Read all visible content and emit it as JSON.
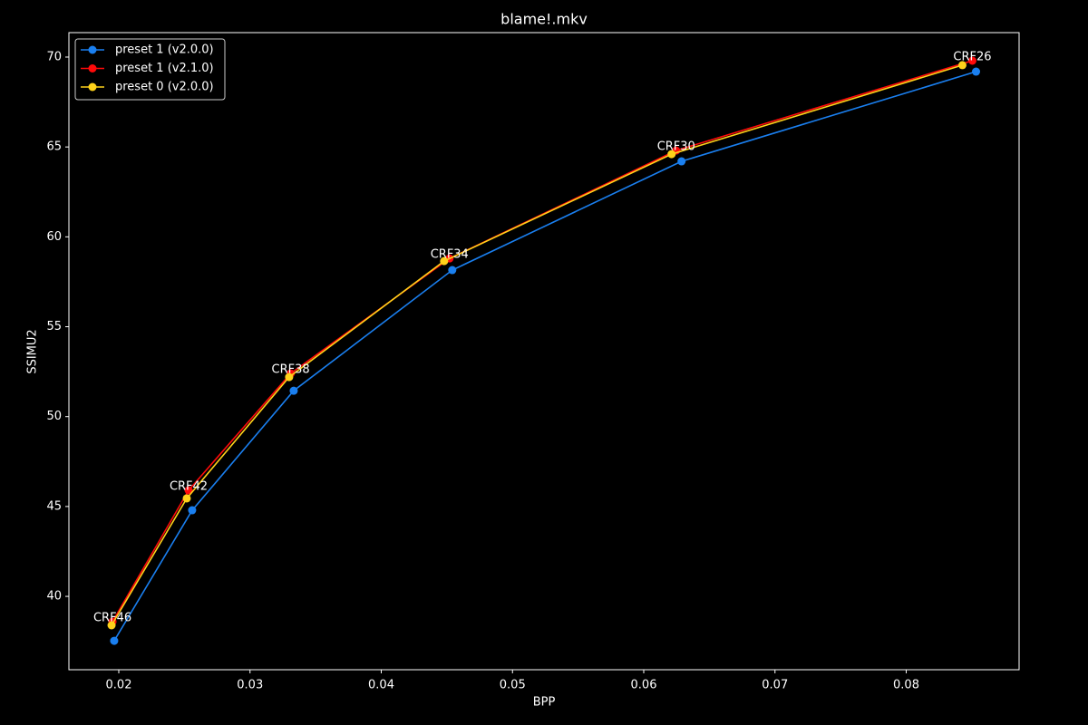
{
  "chart_data": {
    "type": "line",
    "title": "blame!.mkv",
    "x_label": "BPP",
    "y_label": "SSIMU2",
    "xlim": [
      0.0162,
      0.0886
    ],
    "ylim": [
      35.92,
      71.36
    ],
    "xticks": [
      0.02,
      0.03,
      0.04,
      0.05,
      0.06,
      0.07,
      0.08
    ],
    "yticks": [
      40,
      45,
      50,
      55,
      60,
      65,
      70
    ],
    "legend": "upper left",
    "annotations": [
      "CRF46",
      "CRF42",
      "CRF38",
      "CRF34",
      "CRF30",
      "CRF26"
    ],
    "series": [
      {
        "name": "preset 1 (v2.0.0)",
        "color": "#1a7fef",
        "x": [
          0.01965,
          0.02559,
          0.03333,
          0.04541,
          0.06288,
          0.08532
        ],
        "values": [
          37.53,
          44.79,
          51.44,
          58.15,
          64.2,
          69.19
        ]
      },
      {
        "name": "preset 1 (v2.1.0)",
        "color": "#ff0a0a",
        "x": [
          0.01952,
          0.02532,
          0.0331,
          0.0452,
          0.06247,
          0.08504
        ],
        "values": [
          38.59,
          45.9,
          52.4,
          58.8,
          64.8,
          69.8
        ]
      },
      {
        "name": "preset 0 (v2.0.0)",
        "color": "#ffd21a",
        "x": [
          0.01945,
          0.02518,
          0.03298,
          0.04479,
          0.06212,
          0.08428
        ],
        "values": [
          38.39,
          45.45,
          52.2,
          58.65,
          64.6,
          69.55
        ]
      }
    ]
  }
}
